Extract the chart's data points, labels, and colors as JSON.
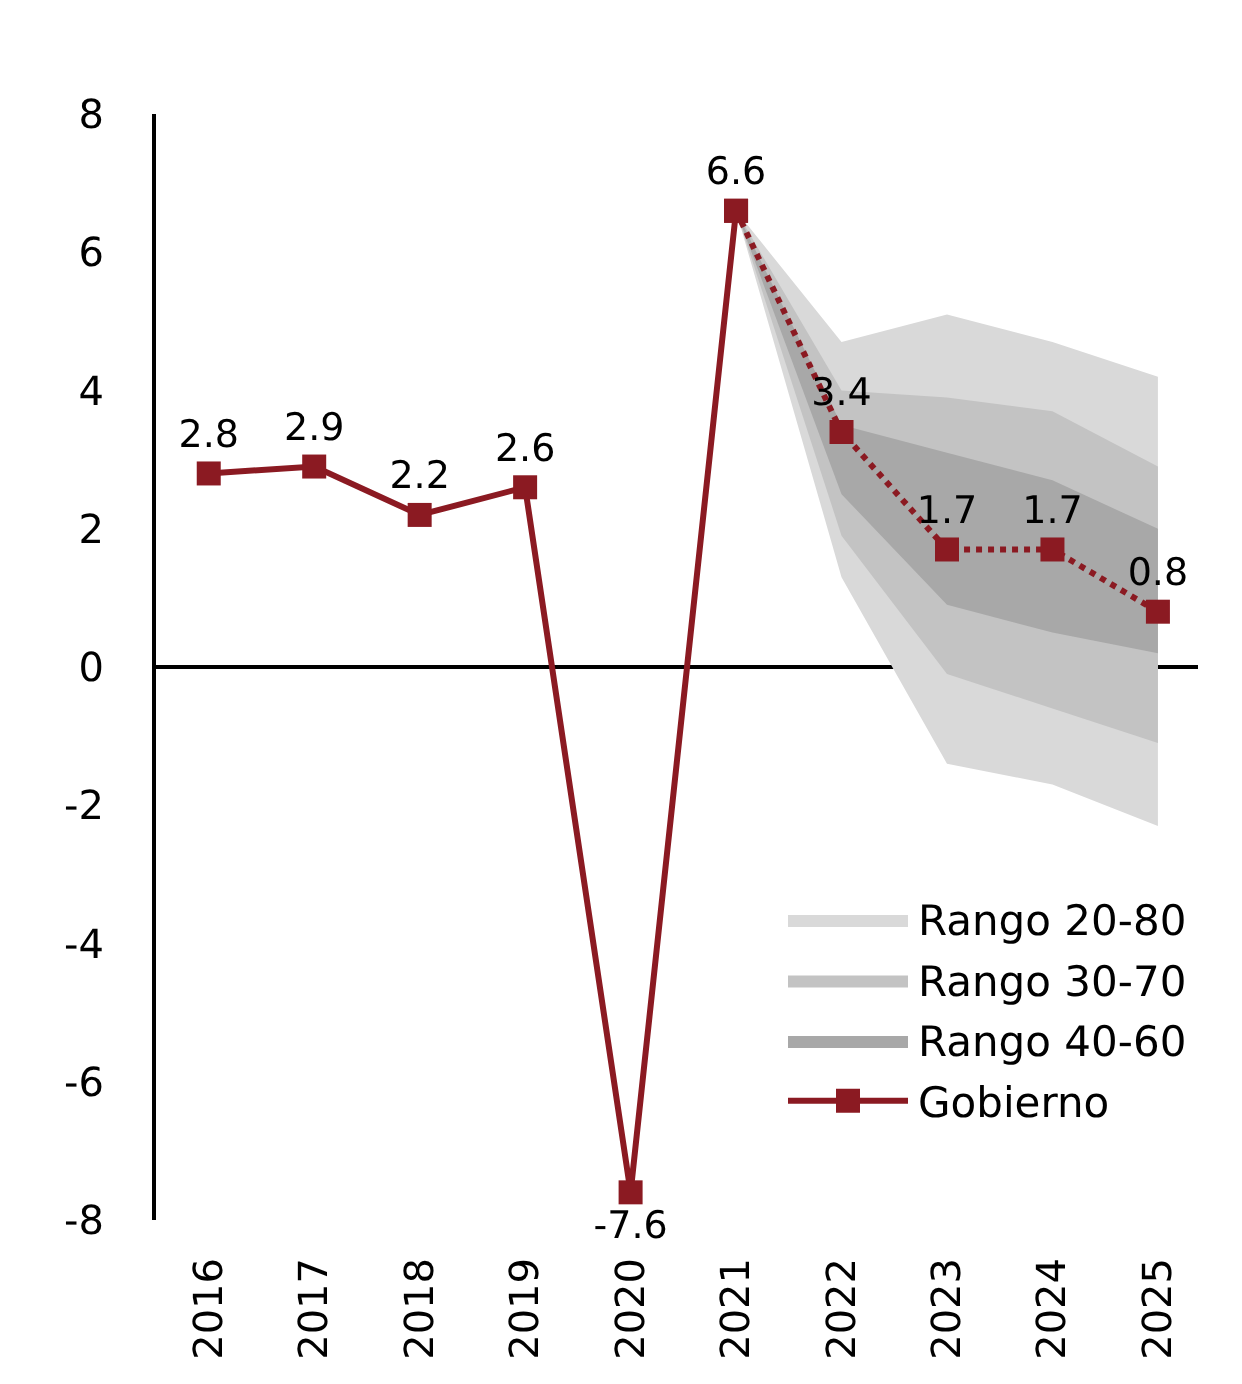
{
  "chart_data": {
    "type": "line",
    "categories": [
      "2016",
      "2017",
      "2018",
      "2019",
      "2020",
      "2021",
      "2022",
      "2023",
      "2024",
      "2025"
    ],
    "series": [
      {
        "name": "Rango 20-80",
        "type": "area",
        "color": "#d9d9d9",
        "values": [
          null,
          null,
          null,
          null,
          null,
          null,
          null,
          null,
          null,
          null
        ],
        "lower": [
          null,
          null,
          null,
          null,
          null,
          6.6,
          1.3,
          -1.4,
          -1.7,
          -2.3
        ],
        "upper": [
          null,
          null,
          null,
          null,
          null,
          6.6,
          4.7,
          5.1,
          4.7,
          4.2
        ]
      },
      {
        "name": "Rango 30-70",
        "type": "area",
        "color": "#c3c3c3",
        "values": [
          null,
          null,
          null,
          null,
          null,
          null,
          null,
          null,
          null,
          null
        ],
        "lower": [
          null,
          null,
          null,
          null,
          null,
          6.6,
          1.9,
          -0.1,
          -0.6,
          -1.1
        ],
        "upper": [
          null,
          null,
          null,
          null,
          null,
          6.6,
          4.0,
          3.9,
          3.7,
          2.9
        ]
      },
      {
        "name": "Rango 40-60",
        "type": "area",
        "color": "#a8a8a8",
        "values": [
          null,
          null,
          null,
          null,
          null,
          null,
          null,
          null,
          null,
          null
        ],
        "lower": [
          null,
          null,
          null,
          null,
          null,
          6.6,
          2.5,
          0.9,
          0.5,
          0.2
        ],
        "upper": [
          null,
          null,
          null,
          null,
          null,
          6.6,
          3.5,
          3.1,
          2.7,
          2.0
        ]
      },
      {
        "name": "Gobierno",
        "color": "#8b1a22",
        "line_style": "solid",
        "values": [
          2.8,
          2.9,
          2.2,
          2.6,
          -7.6,
          6.6,
          null,
          null,
          null,
          null
        ],
        "value_labels": [
          "2.8",
          "2.9",
          "2.2",
          "2.6",
          "-7.6",
          "6.6",
          null,
          null,
          null,
          null
        ]
      },
      {
        "color": "#8b1a22",
        "line_style": "dotted",
        "values": [
          null,
          null,
          null,
          null,
          null,
          6.6,
          3.4,
          1.7,
          1.7,
          0.8
        ],
        "value_labels": [
          null,
          null,
          null,
          null,
          null,
          null,
          "3.4",
          "1.7",
          "1.7",
          "0.8"
        ]
      }
    ],
    "ylim": [
      -8,
      8
    ],
    "yticks": [
      -8,
      -6,
      -4,
      -2,
      0,
      2,
      4,
      6,
      8
    ],
    "legend": "bottom right",
    "marker": "square"
  }
}
